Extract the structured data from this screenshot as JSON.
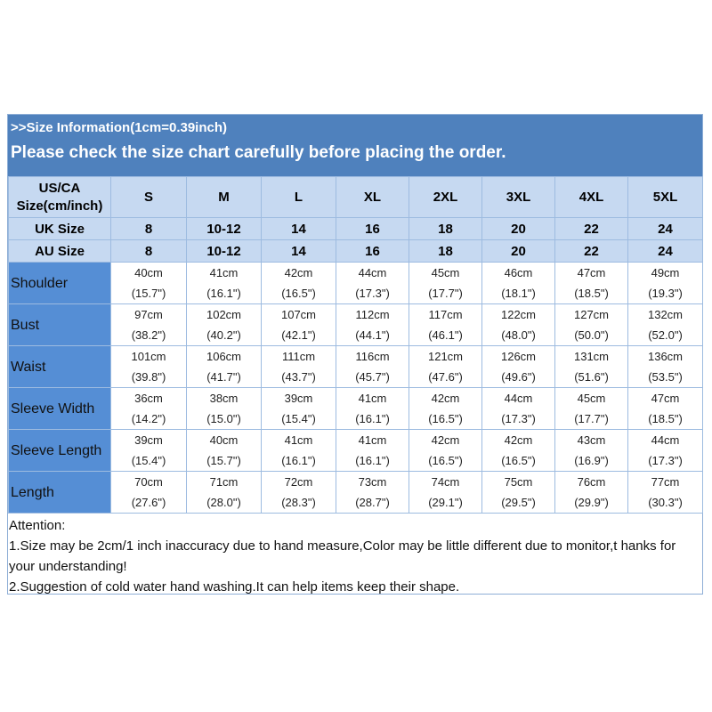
{
  "banner": {
    "line1": ">>Size Information(1cm=0.39inch)",
    "line2": "Please check the size chart carefully before placing the order."
  },
  "header": {
    "corner": "US/CA Size(cm/inch)",
    "sizes": [
      "S",
      "M",
      "L",
      "XL",
      "2XL",
      "3XL",
      "4XL",
      "5XL"
    ]
  },
  "uk": {
    "label": "UK Size",
    "values": [
      "8",
      "10-12",
      "14",
      "16",
      "18",
      "20",
      "22",
      "24"
    ]
  },
  "au": {
    "label": "AU Size",
    "values": [
      "8",
      "10-12",
      "14",
      "16",
      "18",
      "20",
      "22",
      "24"
    ]
  },
  "rows": [
    {
      "label": "Shoulder",
      "cm": [
        "40cm",
        "41cm",
        "42cm",
        "44cm",
        "45cm",
        "46cm",
        "47cm",
        "49cm"
      ],
      "inch": [
        "(15.7\")",
        "(16.1\")",
        "(16.5\")",
        "(17.3\")",
        "(17.7\")",
        "(18.1\")",
        "(18.5\")",
        "(19.3\")"
      ]
    },
    {
      "label": "Bust",
      "cm": [
        "97cm",
        "102cm",
        "107cm",
        "112cm",
        "117cm",
        "122cm",
        "127cm",
        "132cm"
      ],
      "inch": [
        "(38.2\")",
        "(40.2\")",
        "(42.1\")",
        "(44.1\")",
        "(46.1\")",
        "(48.0\")",
        "(50.0\")",
        "(52.0\")"
      ]
    },
    {
      "label": "Waist",
      "cm": [
        "101cm",
        "106cm",
        "111cm",
        "116cm",
        "121cm",
        "126cm",
        "131cm",
        "136cm"
      ],
      "inch": [
        "(39.8\")",
        "(41.7\")",
        "(43.7\")",
        "(45.7\")",
        "(47.6\")",
        "(49.6\")",
        "(51.6\")",
        "(53.5\")"
      ]
    },
    {
      "label": "Sleeve Width",
      "cm": [
        "36cm",
        "38cm",
        "39cm",
        "41cm",
        "42cm",
        "44cm",
        "45cm",
        "47cm"
      ],
      "inch": [
        "(14.2\")",
        "(15.0\")",
        "(15.4\")",
        "(16.1\")",
        "(16.5\")",
        "(17.3\")",
        "(17.7\")",
        "(18.5\")"
      ]
    },
    {
      "label": "Sleeve Length",
      "cm": [
        "39cm",
        "40cm",
        "41cm",
        "41cm",
        "42cm",
        "42cm",
        "43cm",
        "44cm"
      ],
      "inch": [
        "(15.4\")",
        "(15.7\")",
        "(16.1\")",
        "(16.1\")",
        "(16.5\")",
        "(16.5\")",
        "(16.9\")",
        "(17.3\")"
      ]
    },
    {
      "label": "Length",
      "cm": [
        "70cm",
        "71cm",
        "72cm",
        "73cm",
        "74cm",
        "75cm",
        "76cm",
        "77cm"
      ],
      "inch": [
        "(27.6\")",
        "(28.0\")",
        "(28.3\")",
        "(28.7\")",
        "(29.1\")",
        "(29.5\")",
        "(29.9\")",
        "(30.3\")"
      ]
    }
  ],
  "attention": [
    "Attention:",
    "1.Size may be 2cm/1 inch inaccuracy due to hand measure,Color may be little different due to monitor,t hanks for your understanding!",
    "2.Suggestion of cold water hand washing.It can help items keep their shape."
  ],
  "colors": {
    "banner": "#4f81bd",
    "header_cells": "#c6d9f1",
    "row_labels": "#558ed5"
  }
}
